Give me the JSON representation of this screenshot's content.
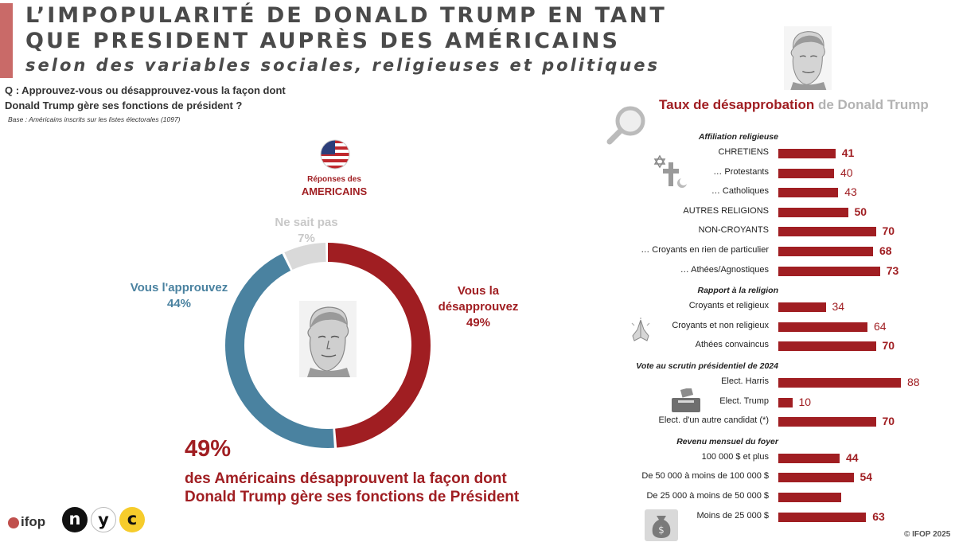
{
  "header": {
    "title_line1": "L’IMPOPULARITÉ DE DONALD TRUMP EN TANT",
    "title_line2": "QUE PRESIDENT AUPRÈS DES AMÉRICAINS",
    "subtitle": "selon des variables sociales, religieuses et politiques"
  },
  "question": {
    "line1": "Q : Approuvez-vous ou désapprouvez-vous la façon dont",
    "line2": "Donald Trump gère ses fonctions de président ?",
    "base": "Base : Américains inscrits sur les listes électorales (1097)"
  },
  "donut": {
    "resp_small": "Réponses des",
    "resp_big": "AMERICAINS",
    "ns_label": "Ne sait pas",
    "ns_pct": "7%",
    "app_label": "Vous l'approuvez",
    "app_pct": "44%",
    "dis_label_1": "Vous la",
    "dis_label_2": "désapprouvez",
    "dis_pct": "49%"
  },
  "conclusion": {
    "pct": "49%",
    "line1": "des Américains désapprouvent la façon dont",
    "line2": "Donald Trump gère ses fonctions de Président"
  },
  "right_panel": {
    "title_a": "Taux de désapprobation",
    "title_b": "de Donald Trump"
  },
  "chart_data": [
    {
      "type": "pie",
      "labels": [
        "Vous la désapprouvez",
        "Vous l'approuvez",
        "Ne sait pas"
      ],
      "values": [
        49,
        44,
        7
      ],
      "colors": [
        "#a01e22",
        "#4a82a0",
        "#d9d9d9"
      ]
    },
    {
      "type": "bar",
      "title": "Taux de désapprobation de Donald Trump",
      "sections": [
        {
          "title": "Affiliation religieuse",
          "rows": [
            {
              "label": "CHRETIENS",
              "value": 41,
              "value_text": "41",
              "bold": true
            },
            {
              "label": "… Protestants",
              "value": 40,
              "value_text": "40",
              "bold": false
            },
            {
              "label": "… Catholiques",
              "value": 43,
              "value_text": "43",
              "bold": false
            },
            {
              "label": "AUTRES RELIGIONS",
              "value": 50,
              "value_text": "50",
              "bold": true
            },
            {
              "label": "NON-CROYANTS",
              "value": 70,
              "value_text": "70",
              "bold": true
            },
            {
              "label": "… Croyants en rien de particulier",
              "value": 68,
              "value_text": "68",
              "bold": true
            },
            {
              "label": "… Athées/Agnostiques",
              "value": 73,
              "value_text": "73",
              "bold": true
            }
          ]
        },
        {
          "title": "Rapport à la religion",
          "rows": [
            {
              "label": "Croyants et religieux",
              "value": 34,
              "value_text": "34",
              "bold": false
            },
            {
              "label": "Croyants et non religieux",
              "value": 64,
              "value_text": "64",
              "bold": false
            },
            {
              "label": "Athées convaincus",
              "value": 70,
              "value_text": "70",
              "bold": true
            }
          ]
        },
        {
          "title": "Vote  au scrutin présidentiel de 2024",
          "rows": [
            {
              "label": "Elect. Harris",
              "value": 88,
              "value_text": "88",
              "bold": false
            },
            {
              "label": "Elect. Trump",
              "value": 10,
              "value_text": "10",
              "bold": false
            },
            {
              "label": "Elect. d'un autre candidat (*)",
              "value": 70,
              "value_text": "70",
              "bold": true
            }
          ]
        },
        {
          "title": "Revenu mensuel du foyer",
          "rows": [
            {
              "label": "100 000 $ et plus",
              "value": 44,
              "value_text": "44",
              "bold": true
            },
            {
              "label": "De 50 000 à moins de 100 000 $",
              "value": 54,
              "value_text": "54",
              "bold": true
            },
            {
              "label": "De 25 000 à moins de 50 000 $",
              "value": 45,
              "value_text": "",
              "bold": false
            },
            {
              "label": "Moins de 25 000 $",
              "value": 63,
              "value_text": "63",
              "bold": true
            }
          ]
        }
      ]
    }
  ],
  "footer": {
    "copyright": "© IFOP 2025",
    "logo_ifop": "ifop",
    "logo_n": "n",
    "logo_y": "y",
    "logo_c": "c"
  },
  "icons": [
    "trump-portrait-icon",
    "magnifier-icon",
    "religion-symbols-icon",
    "praying-hands-icon",
    "ballot-box-icon",
    "money-bag-icon",
    "us-flag-icon"
  ]
}
